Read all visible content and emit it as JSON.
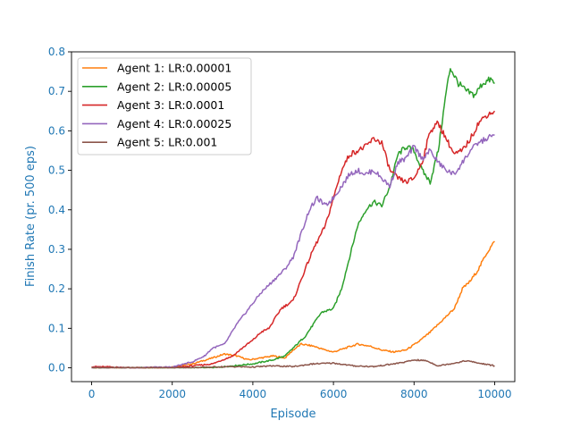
{
  "chart_data": {
    "type": "line",
    "title": "",
    "xlabel": "Episode",
    "ylabel": "Finish Rate (pr. 500 eps)",
    "xlim": [
      -500,
      10500
    ],
    "ylim": [
      -0.035,
      0.8
    ],
    "x_ticks": [
      0,
      2000,
      4000,
      6000,
      8000,
      10000
    ],
    "y_ticks": [
      0.0,
      0.1,
      0.2,
      0.3,
      0.4,
      0.5,
      0.6,
      0.7,
      0.8
    ],
    "x_tick_labels": [
      "0",
      "2000",
      "4000",
      "6000",
      "8000",
      "10000"
    ],
    "y_tick_labels": [
      "0.0",
      "0.1",
      "0.2",
      "0.3",
      "0.4",
      "0.5",
      "0.6",
      "0.7",
      "0.8"
    ],
    "grid": false,
    "legend_position": "top-left",
    "axis_label_color": "#1f77b4",
    "series": [
      {
        "name": "Agent 1: LR:0.00001",
        "color": "#ff7f0e",
        "points": [
          [
            0,
            0.0
          ],
          [
            500,
            0.0
          ],
          [
            1000,
            0.0
          ],
          [
            1500,
            0.0
          ],
          [
            2000,
            0.002
          ],
          [
            2500,
            0.01
          ],
          [
            3000,
            0.025
          ],
          [
            3300,
            0.035
          ],
          [
            3600,
            0.03
          ],
          [
            3900,
            0.02
          ],
          [
            4200,
            0.025
          ],
          [
            4500,
            0.03
          ],
          [
            4800,
            0.025
          ],
          [
            5000,
            0.045
          ],
          [
            5200,
            0.06
          ],
          [
            5500,
            0.055
          ],
          [
            5800,
            0.045
          ],
          [
            6000,
            0.04
          ],
          [
            6300,
            0.05
          ],
          [
            6600,
            0.06
          ],
          [
            6900,
            0.055
          ],
          [
            7200,
            0.045
          ],
          [
            7500,
            0.04
          ],
          [
            7800,
            0.045
          ],
          [
            8100,
            0.065
          ],
          [
            8400,
            0.09
          ],
          [
            8700,
            0.12
          ],
          [
            9000,
            0.15
          ],
          [
            9200,
            0.2
          ],
          [
            9400,
            0.22
          ],
          [
            9600,
            0.25
          ],
          [
            9800,
            0.29
          ],
          [
            10000,
            0.32
          ]
        ]
      },
      {
        "name": "Agent 2: LR:0.00005",
        "color": "#2ca02c",
        "points": [
          [
            0,
            0.0
          ],
          [
            1000,
            0.0
          ],
          [
            2000,
            0.0
          ],
          [
            3000,
            0.0
          ],
          [
            3500,
            0.005
          ],
          [
            4000,
            0.01
          ],
          [
            4500,
            0.02
          ],
          [
            4800,
            0.03
          ],
          [
            5000,
            0.05
          ],
          [
            5300,
            0.08
          ],
          [
            5500,
            0.11
          ],
          [
            5700,
            0.14
          ],
          [
            6000,
            0.15
          ],
          [
            6200,
            0.2
          ],
          [
            6400,
            0.28
          ],
          [
            6600,
            0.36
          ],
          [
            6800,
            0.4
          ],
          [
            7000,
            0.42
          ],
          [
            7200,
            0.41
          ],
          [
            7400,
            0.46
          ],
          [
            7600,
            0.54
          ],
          [
            7800,
            0.56
          ],
          [
            8000,
            0.55
          ],
          [
            8200,
            0.5
          ],
          [
            8400,
            0.47
          ],
          [
            8600,
            0.55
          ],
          [
            8800,
            0.7
          ],
          [
            8900,
            0.76
          ],
          [
            9100,
            0.72
          ],
          [
            9300,
            0.7
          ],
          [
            9500,
            0.69
          ],
          [
            9700,
            0.72
          ],
          [
            9900,
            0.73
          ],
          [
            10000,
            0.72
          ]
        ]
      },
      {
        "name": "Agent 3: LR:0.0001",
        "color": "#d62728",
        "points": [
          [
            0,
            0.003
          ],
          [
            500,
            0.002
          ],
          [
            1000,
            0.0
          ],
          [
            2000,
            0.0
          ],
          [
            2500,
            0.005
          ],
          [
            3000,
            0.01
          ],
          [
            3500,
            0.03
          ],
          [
            3800,
            0.055
          ],
          [
            4000,
            0.07
          ],
          [
            4200,
            0.09
          ],
          [
            4400,
            0.1
          ],
          [
            4700,
            0.15
          ],
          [
            5000,
            0.17
          ],
          [
            5300,
            0.25
          ],
          [
            5500,
            0.3
          ],
          [
            5800,
            0.36
          ],
          [
            6000,
            0.43
          ],
          [
            6200,
            0.5
          ],
          [
            6400,
            0.54
          ],
          [
            6600,
            0.55
          ],
          [
            6800,
            0.56
          ],
          [
            7000,
            0.58
          ],
          [
            7200,
            0.57
          ],
          [
            7400,
            0.5
          ],
          [
            7600,
            0.48
          ],
          [
            7800,
            0.47
          ],
          [
            8000,
            0.48
          ],
          [
            8200,
            0.52
          ],
          [
            8400,
            0.6
          ],
          [
            8600,
            0.62
          ],
          [
            8800,
            0.58
          ],
          [
            9000,
            0.54
          ],
          [
            9200,
            0.55
          ],
          [
            9400,
            0.58
          ],
          [
            9600,
            0.62
          ],
          [
            9800,
            0.64
          ],
          [
            10000,
            0.65
          ]
        ]
      },
      {
        "name": "Agent 4: LR:0.00025",
        "color": "#9467bd",
        "points": [
          [
            0,
            0.0
          ],
          [
            1000,
            0.0
          ],
          [
            2000,
            0.002
          ],
          [
            2500,
            0.015
          ],
          [
            2800,
            0.03
          ],
          [
            3000,
            0.05
          ],
          [
            3300,
            0.06
          ],
          [
            3600,
            0.11
          ],
          [
            3900,
            0.15
          ],
          [
            4200,
            0.19
          ],
          [
            4500,
            0.22
          ],
          [
            4800,
            0.25
          ],
          [
            5000,
            0.28
          ],
          [
            5200,
            0.34
          ],
          [
            5400,
            0.4
          ],
          [
            5600,
            0.43
          ],
          [
            5800,
            0.41
          ],
          [
            6000,
            0.43
          ],
          [
            6200,
            0.46
          ],
          [
            6400,
            0.49
          ],
          [
            6600,
            0.5
          ],
          [
            6800,
            0.49
          ],
          [
            7000,
            0.5
          ],
          [
            7200,
            0.48
          ],
          [
            7400,
            0.46
          ],
          [
            7600,
            0.52
          ],
          [
            7800,
            0.53
          ],
          [
            8000,
            0.56
          ],
          [
            8200,
            0.53
          ],
          [
            8400,
            0.55
          ],
          [
            8600,
            0.52
          ],
          [
            8800,
            0.5
          ],
          [
            9000,
            0.49
          ],
          [
            9200,
            0.52
          ],
          [
            9400,
            0.55
          ],
          [
            9600,
            0.57
          ],
          [
            9800,
            0.58
          ],
          [
            10000,
            0.59
          ]
        ]
      },
      {
        "name": "Agent 5: LR:0.001",
        "color": "#8c564b",
        "points": [
          [
            0,
            0.0
          ],
          [
            500,
            0.0
          ],
          [
            1000,
            0.0
          ],
          [
            1500,
            0.0
          ],
          [
            2000,
            0.0
          ],
          [
            2500,
            0.0
          ],
          [
            3000,
            0.002
          ],
          [
            3500,
            0.003
          ],
          [
            4000,
            0.002
          ],
          [
            4500,
            0.005
          ],
          [
            5000,
            0.003
          ],
          [
            5500,
            0.01
          ],
          [
            6000,
            0.012
          ],
          [
            6500,
            0.005
          ],
          [
            7000,
            0.003
          ],
          [
            7500,
            0.01
          ],
          [
            7800,
            0.015
          ],
          [
            8000,
            0.02
          ],
          [
            8300,
            0.018
          ],
          [
            8600,
            0.005
          ],
          [
            9000,
            0.012
          ],
          [
            9300,
            0.018
          ],
          [
            9600,
            0.012
          ],
          [
            10000,
            0.005
          ]
        ]
      }
    ]
  }
}
